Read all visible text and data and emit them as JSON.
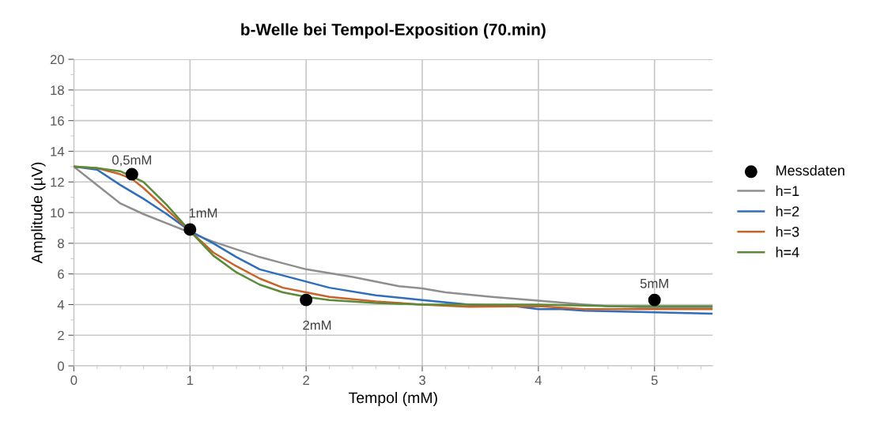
{
  "chart_data": {
    "type": "line",
    "title": "b-Welle bei Tempol-Exposition (70.min)",
    "xlabel": "Tempol (mM)",
    "ylabel": "Amplitude (µV)",
    "xlim": [
      0,
      5.5
    ],
    "xticks": [
      0,
      1,
      2,
      3,
      4,
      5
    ],
    "ylim": [
      0,
      20
    ],
    "yticks": [
      0,
      2,
      4,
      6,
      8,
      10,
      12,
      14,
      16,
      18,
      20
    ],
    "grid": true,
    "legend": "right",
    "line_style": "solid",
    "marker": "none",
    "series": [
      {
        "name": "Messdaten",
        "type": "scatter",
        "marker": "circle",
        "color": "#000000",
        "x": [
          0.5,
          1,
          2,
          5
        ],
        "values": [
          12.5,
          8.9,
          4.3,
          4.3
        ]
      },
      {
        "name": "h=1",
        "color": "#8f8f8f",
        "x": [
          0,
          0.2,
          0.4,
          0.6,
          0.8,
          1,
          1.2,
          1.4,
          1.6,
          1.8,
          2,
          2.4,
          2.8,
          3,
          3.2,
          3.6,
          4,
          4.4,
          4.6,
          5,
          5.5
        ],
        "values": [
          13,
          11.8,
          10.6,
          9.9,
          9.3,
          8.7,
          8.1,
          7.6,
          7.1,
          6.7,
          6.3,
          5.8,
          5.2,
          5.05,
          4.8,
          4.5,
          4.25,
          4.0,
          3.9,
          3.8,
          3.8
        ]
      },
      {
        "name": "h=2",
        "color": "#2f6eba",
        "x": [
          0,
          0.2,
          0.4,
          0.6,
          0.8,
          1,
          1.2,
          1.4,
          1.6,
          1.8,
          2,
          2.2,
          2.6,
          3,
          3.4,
          3.8,
          4,
          4.2,
          4.4,
          5,
          5.5
        ],
        "values": [
          13,
          12.8,
          11.8,
          10.9,
          9.9,
          8.8,
          8.0,
          7.1,
          6.3,
          5.9,
          5.5,
          5.1,
          4.6,
          4.3,
          4.0,
          3.9,
          3.7,
          3.7,
          3.6,
          3.5,
          3.4
        ]
      },
      {
        "name": "h=3",
        "color": "#c8642a",
        "x": [
          0,
          0.2,
          0.4,
          0.5,
          0.6,
          0.8,
          1,
          1.2,
          1.4,
          1.6,
          1.8,
          2,
          2.2,
          2.6,
          3,
          3.4,
          4,
          4.4,
          5,
          5.5
        ],
        "values": [
          13,
          12.9,
          12.5,
          12.2,
          11.6,
          10.2,
          8.8,
          7.4,
          6.5,
          5.7,
          5.1,
          4.8,
          4.5,
          4.2,
          4.0,
          3.85,
          3.9,
          3.7,
          3.7,
          3.7
        ]
      },
      {
        "name": "h=4",
        "color": "#5a8a3a",
        "x": [
          0,
          0.2,
          0.4,
          0.6,
          0.8,
          1,
          1.2,
          1.4,
          1.6,
          1.8,
          2,
          2.2,
          2.6,
          3,
          4,
          4.6,
          5,
          5.5
        ],
        "values": [
          13,
          12.9,
          12.7,
          12.0,
          10.5,
          8.8,
          7.2,
          6.1,
          5.3,
          4.8,
          4.5,
          4.3,
          4.1,
          4.0,
          4.0,
          3.9,
          3.9,
          3.9
        ]
      }
    ],
    "annotations": [
      {
        "text": "0,5mM",
        "x": 0.5,
        "y": 12.5
      },
      {
        "text": "1mM",
        "x": 1,
        "y": 8.9
      },
      {
        "text": "2mM",
        "x": 2,
        "y": 4.3
      },
      {
        "text": "5mM",
        "x": 5,
        "y": 4.3
      }
    ]
  }
}
